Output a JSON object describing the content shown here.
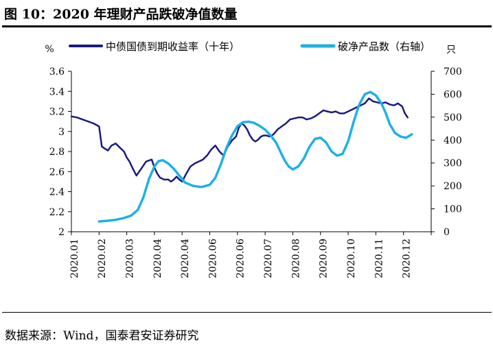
{
  "page": {
    "title": "图 10：2020 年理财产品跌破净值数量",
    "source": "数据来源：Wind，国泰君安证券研究"
  },
  "colors": {
    "bond_yield": "#1a1a80",
    "products": "#1fb0e6",
    "axis": "#000000"
  },
  "chart_data": {
    "type": "line",
    "title": "",
    "x_tick_labels": [
      "2020.01",
      "2020.02",
      "2020.03",
      "2020.04",
      "2020.04",
      "2020.06",
      "2020.06",
      "2020.07",
      "2020.08",
      "2020.09",
      "2020.10",
      "2020.11",
      "2020.12"
    ],
    "left_axis": {
      "unit": "%",
      "min": 2,
      "max": 3.6,
      "ticks": [
        2,
        2.2,
        2.4,
        2.6,
        2.8,
        3,
        3.2,
        3.4,
        3.6
      ]
    },
    "right_axis": {
      "unit": "只",
      "min": 0,
      "max": 700,
      "ticks": [
        0,
        100,
        200,
        300,
        400,
        500,
        600,
        700
      ]
    },
    "legend_position": "top",
    "series": [
      {
        "name": "中债国债到期收益率（十年）",
        "axis": "left",
        "color": "#1a1a80",
        "x": [
          0,
          0.2,
          0.4,
          0.6,
          0.8,
          1.0,
          1.1,
          1.2,
          1.32,
          1.45,
          1.6,
          1.75,
          1.9,
          2.0,
          2.1,
          2.2,
          2.35,
          2.5,
          2.7,
          2.9,
          3.0,
          3.1,
          3.2,
          3.35,
          3.5,
          3.6,
          3.7,
          3.8,
          3.9,
          4.0,
          4.15,
          4.3,
          4.45,
          4.6,
          4.75,
          4.9,
          5.05,
          5.2,
          5.35,
          5.5,
          5.65,
          5.8,
          5.95,
          6.05,
          6.15,
          6.25,
          6.35,
          6.45,
          6.55,
          6.65,
          6.75,
          6.85,
          6.95,
          7.05,
          7.15,
          7.3,
          7.45,
          7.6,
          7.75,
          7.9,
          8.05,
          8.2,
          8.35,
          8.5,
          8.65,
          8.8,
          8.95,
          9.1,
          9.25,
          9.4,
          9.55,
          9.7,
          9.85,
          10.0,
          10.15,
          10.3,
          10.45,
          10.6,
          10.75,
          10.9,
          11.05,
          11.2,
          11.35,
          11.5,
          11.65,
          11.8,
          11.95,
          12.05,
          12.15
        ],
        "values": [
          3.15,
          3.14,
          3.12,
          3.1,
          3.08,
          3.05,
          2.85,
          2.83,
          2.81,
          2.86,
          2.88,
          2.84,
          2.8,
          2.74,
          2.7,
          2.64,
          2.56,
          2.62,
          2.7,
          2.72,
          2.64,
          2.58,
          2.54,
          2.52,
          2.52,
          2.5,
          2.52,
          2.55,
          2.52,
          2.5,
          2.58,
          2.65,
          2.68,
          2.7,
          2.72,
          2.76,
          2.82,
          2.86,
          2.8,
          2.76,
          2.85,
          2.91,
          2.95,
          3.04,
          3.08,
          3.06,
          3.02,
          2.96,
          2.92,
          2.9,
          2.92,
          2.95,
          2.96,
          2.96,
          2.95,
          2.97,
          3.02,
          3.05,
          3.08,
          3.12,
          3.13,
          3.14,
          3.14,
          3.12,
          3.13,
          3.15,
          3.18,
          3.21,
          3.2,
          3.19,
          3.2,
          3.18,
          3.18,
          3.2,
          3.22,
          3.24,
          3.26,
          3.28,
          3.33,
          3.3,
          3.29,
          3.28,
          3.29,
          3.27,
          3.26,
          3.28,
          3.25,
          3.18,
          3.14
        ]
      },
      {
        "name": "破净产品数（右轴）",
        "axis": "right",
        "color": "#1fb0e6",
        "x": [
          1.0,
          1.3,
          1.6,
          1.9,
          2.15,
          2.4,
          2.6,
          2.8,
          3.0,
          3.15,
          3.3,
          3.5,
          3.7,
          3.9,
          4.1,
          4.4,
          4.7,
          5.0,
          5.2,
          5.4,
          5.6,
          5.8,
          6.0,
          6.2,
          6.4,
          6.6,
          6.8,
          7.0,
          7.2,
          7.4,
          7.55,
          7.7,
          7.85,
          8.0,
          8.2,
          8.4,
          8.6,
          8.8,
          9.0,
          9.2,
          9.4,
          9.6,
          9.8,
          10.0,
          10.2,
          10.4,
          10.6,
          10.8,
          11.0,
          11.2,
          11.35,
          11.5,
          11.7,
          11.9,
          12.1,
          12.3
        ],
        "values": [
          45,
          48,
          52,
          60,
          70,
          95,
          150,
          230,
          285,
          308,
          312,
          298,
          275,
          245,
          215,
          200,
          195,
          205,
          235,
          295,
          365,
          420,
          460,
          478,
          480,
          475,
          462,
          445,
          420,
          388,
          350,
          312,
          285,
          272,
          285,
          320,
          370,
          405,
          410,
          390,
          350,
          332,
          340,
          395,
          480,
          555,
          600,
          610,
          595,
          560,
          520,
          470,
          430,
          415,
          410,
          425
        ]
      }
    ]
  }
}
